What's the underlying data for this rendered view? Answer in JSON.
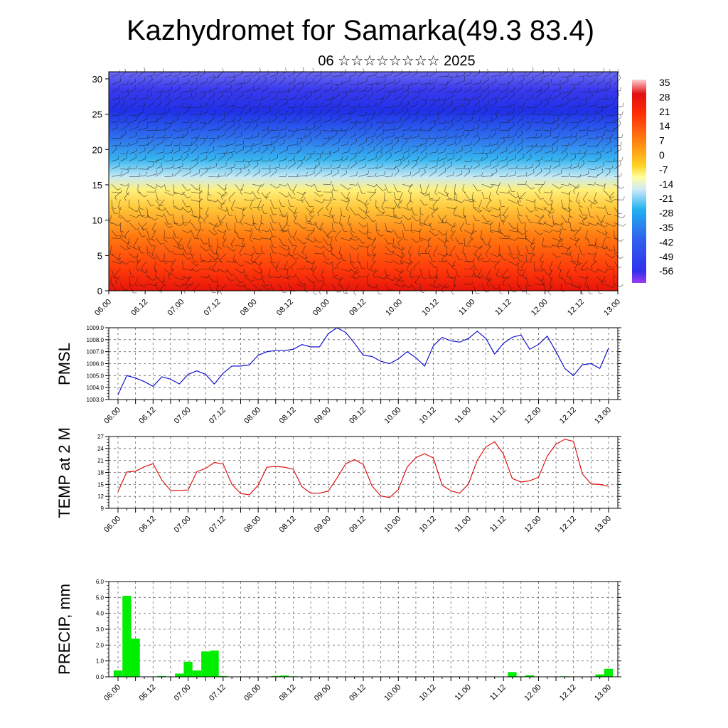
{
  "header": {
    "title": "Kazhydromet for Samarka(49.3 83.4)",
    "subtitle": "06 ☆☆☆☆☆☆☆☆ 2025"
  },
  "x_labels": [
    "06.00",
    "06.12",
    "07.00",
    "07.12",
    "08.00",
    "08.12",
    "09.00",
    "09.12",
    "10.00",
    "10.12",
    "11.00",
    "11.12",
    "12.00",
    "12.12",
    "13.00"
  ],
  "chart_data": [
    {
      "type": "heatmap",
      "name": "temperature-wind-section",
      "ylim": [
        0,
        31
      ],
      "y_ticks": [
        0,
        5,
        10,
        15,
        20,
        25,
        30
      ],
      "colorbar_labels": [
        "35",
        "28",
        "21",
        "14",
        "7",
        "0",
        "-7",
        "-14",
        "-21",
        "-28",
        "-35",
        "-42",
        "-49",
        "-56"
      ],
      "colors": {
        "warm": "#e8180c",
        "mid": "#ffee55",
        "cold": "#2a2aee",
        "top": "#b266ff"
      }
    },
    {
      "type": "line",
      "ylabel": "PMSL",
      "ylim": [
        1003.0,
        1009.0
      ],
      "y_ticks": [
        "1003.0",
        "1004.0",
        "1005.0",
        "1006.0",
        "1007.0",
        "1008.0",
        "1009.0"
      ],
      "color": "#0000cc",
      "values": [
        1003.4,
        1005.0,
        1004.8,
        1004.5,
        1004.1,
        1004.9,
        1004.7,
        1004.3,
        1005.1,
        1005.4,
        1005.1,
        1004.3,
        1005.2,
        1005.8,
        1005.8,
        1005.9,
        1006.7,
        1007.0,
        1007.1,
        1007.1,
        1007.2,
        1007.6,
        1007.4,
        1007.4,
        1008.5,
        1009.0,
        1008.6,
        1007.7,
        1006.7,
        1006.6,
        1006.2,
        1006.0,
        1006.4,
        1007.0,
        1006.5,
        1005.8,
        1007.5,
        1008.2,
        1007.9,
        1007.8,
        1008.1,
        1008.7,
        1008.1,
        1006.8,
        1007.7,
        1008.2,
        1008.4,
        1007.2,
        1007.6,
        1008.3,
        1007.0,
        1005.6,
        1005.0,
        1005.9,
        1006.0,
        1005.6,
        1007.3
      ]
    },
    {
      "type": "line",
      "ylabel": "TEMP at 2 M",
      "ylim": [
        9,
        27
      ],
      "y_ticks": [
        "9",
        "12",
        "15",
        "18",
        "21",
        "24",
        "27"
      ],
      "color": "#dd0000",
      "values": [
        13.2,
        18.1,
        18.3,
        19.4,
        20.2,
        16.1,
        13.5,
        13.5,
        13.6,
        18.2,
        19.0,
        20.5,
        20.1,
        15.0,
        12.7,
        12.4,
        14.8,
        19.3,
        19.5,
        19.3,
        18.8,
        14.4,
        12.8,
        12.8,
        13.3,
        16.6,
        20.2,
        21.2,
        20.0,
        14.6,
        12.1,
        11.7,
        13.7,
        19.3,
        21.7,
        22.7,
        21.6,
        14.8,
        13.4,
        12.8,
        15.1,
        21.0,
        24.4,
        25.7,
        22.6,
        16.5,
        15.6,
        15.9,
        16.8,
        22.1,
        25.1,
        26.3,
        25.8,
        17.7,
        15.1,
        15.0,
        14.5
      ]
    },
    {
      "type": "bar",
      "ylabel": "PRECIP, mm",
      "ylim": [
        0,
        6.0
      ],
      "y_ticks": [
        "0.0",
        "1.0",
        "2.0",
        "3.0",
        "4.0",
        "5.0",
        "6.0"
      ],
      "color": "#00ee00",
      "values": [
        0.4,
        5.1,
        2.4,
        0,
        0,
        0.05,
        0,
        0.2,
        0.95,
        0.4,
        1.6,
        1.65,
        0.05,
        0,
        0,
        0,
        0,
        0,
        0.05,
        0.08,
        0.03,
        0,
        0,
        0,
        0,
        0,
        0,
        0,
        0,
        0,
        0,
        0,
        0,
        0,
        0,
        0,
        0,
        0,
        0,
        0,
        0,
        0,
        0,
        0,
        0,
        0.3,
        0.03,
        0.1,
        0,
        0,
        0,
        0.03,
        0,
        0,
        0,
        0.15,
        0.5
      ]
    }
  ]
}
